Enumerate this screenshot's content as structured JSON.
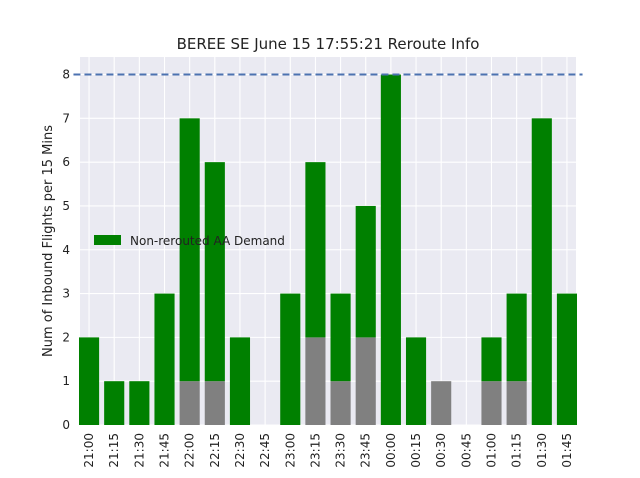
{
  "chart_data": {
    "type": "bar",
    "title": "BEREE SE June 15 17:55:21 Reroute Info",
    "xlabel": "",
    "ylabel": "Num of Inbound Flights per 15 Mins",
    "ylim": [
      0,
      8.4
    ],
    "yticks": [
      0,
      1,
      2,
      3,
      4,
      5,
      6,
      7,
      8
    ],
    "grid": true,
    "legend_position": "center-left",
    "categories": [
      "21:00",
      "21:15",
      "21:30",
      "21:45",
      "22:00",
      "22:15",
      "22:30",
      "22:45",
      "23:00",
      "23:15",
      "23:30",
      "23:45",
      "00:00",
      "00:15",
      "00:30",
      "00:45",
      "01:00",
      "01:15",
      "01:30",
      "01:45"
    ],
    "series": [
      {
        "name": "Non-rerouted AA Demand",
        "color": "#008000",
        "values": [
          2,
          1,
          1,
          3,
          6,
          5,
          2,
          0,
          3,
          4,
          2,
          3,
          8,
          2,
          0,
          0,
          1,
          2,
          7,
          3
        ]
      },
      {
        "color": "#808080",
        "values": [
          0,
          0,
          0,
          0,
          1,
          1,
          0,
          0,
          0,
          2,
          1,
          2,
          0,
          0,
          1,
          0,
          1,
          1,
          0,
          0
        ]
      }
    ],
    "reference_line": {
      "value": 8,
      "style": "dashed",
      "color": "#4c72b0"
    },
    "colors": {
      "plot_background": "#eaeaf2",
      "grid": "#ffffff"
    }
  }
}
